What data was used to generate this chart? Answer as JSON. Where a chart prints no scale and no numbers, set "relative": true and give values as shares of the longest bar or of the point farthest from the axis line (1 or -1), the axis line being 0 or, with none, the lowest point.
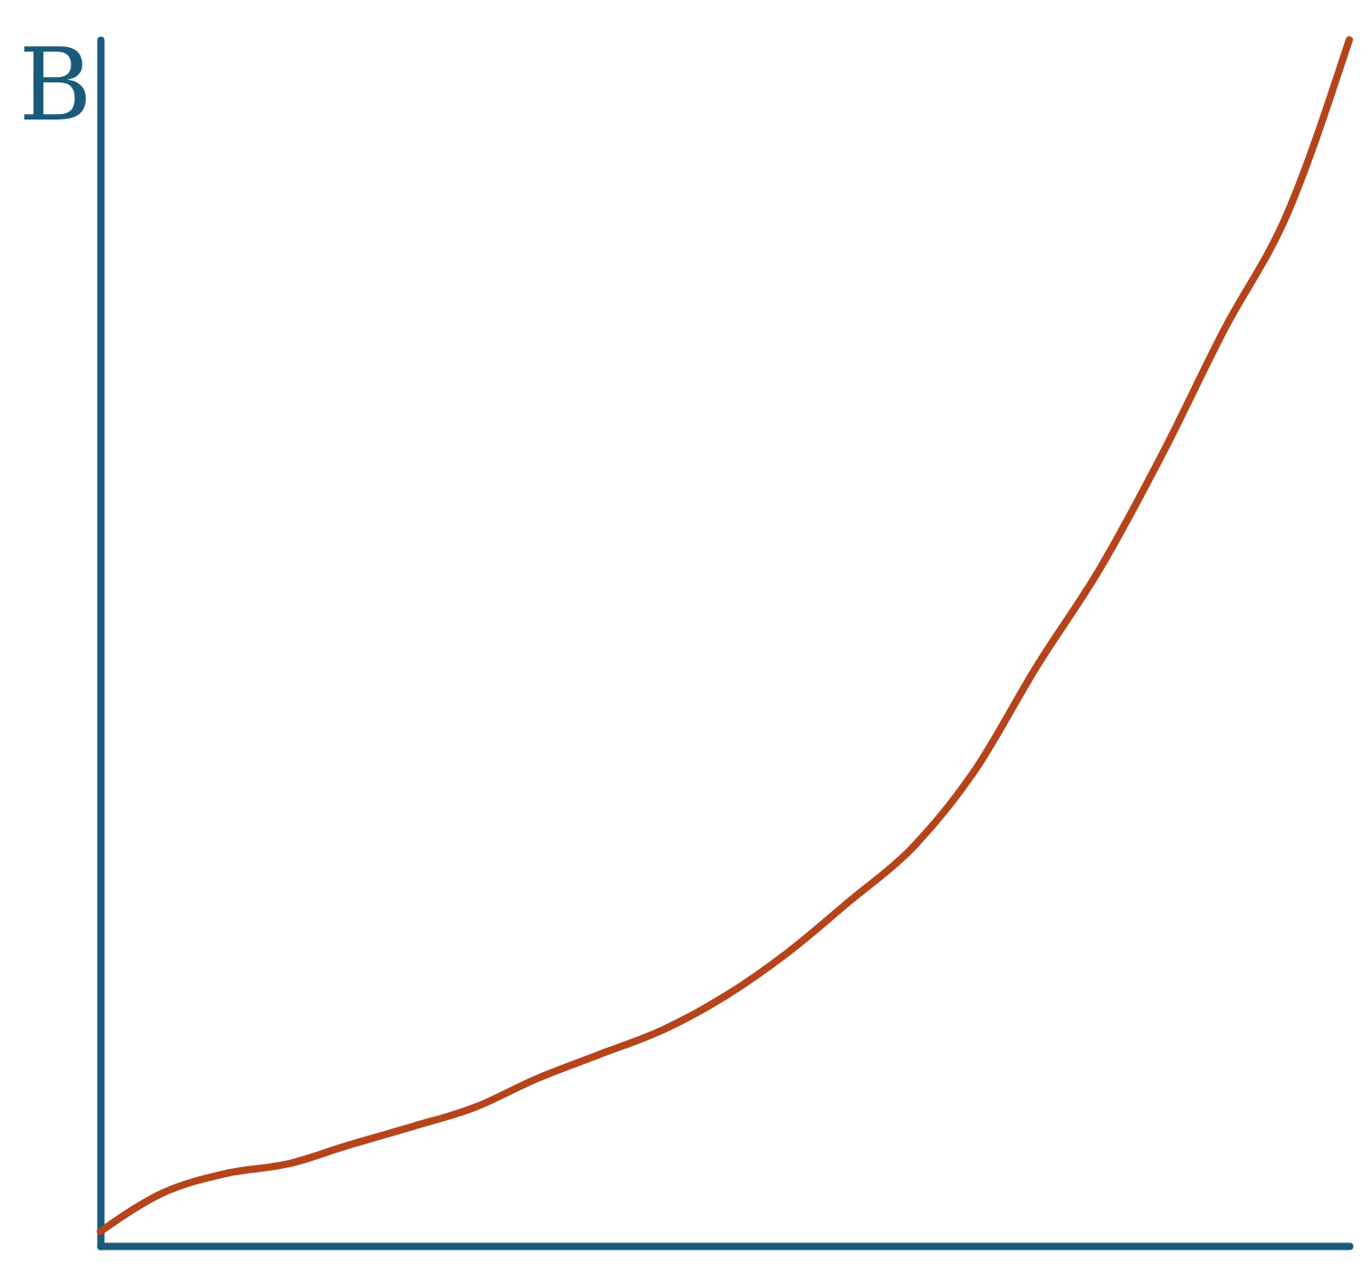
{
  "chart_data": {
    "type": "line",
    "ylabel": "B",
    "relative": true,
    "categories": [
      null,
      null,
      null,
      null,
      null,
      null,
      null,
      null,
      null,
      null,
      null,
      null,
      null,
      null,
      null,
      null,
      null,
      null,
      null,
      null,
      null
    ],
    "series": [
      {
        "color": "#b5441a",
        "values": [
          0.012,
          0.044,
          0.06,
          0.068,
          0.084,
          0.099,
          0.115,
          0.139,
          0.159,
          0.179,
          0.207,
          0.243,
          0.286,
          0.33,
          0.394,
          0.481,
          0.561,
          0.656,
          0.76,
          0.855,
          1
        ]
      }
    ],
    "legend": false,
    "grid": false
  }
}
